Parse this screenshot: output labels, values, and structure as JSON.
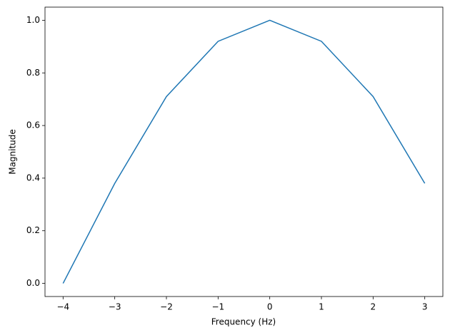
{
  "chart_data": {
    "type": "line",
    "x_label": "Frequency (Hz)",
    "y_label": "Magnitude",
    "x": [
      -4,
      -3,
      -2,
      -1,
      0,
      1,
      2,
      3
    ],
    "series": [
      {
        "color": "#1f77b4",
        "values": [
          0.0,
          0.38,
          0.71,
          0.92,
          1.0,
          0.92,
          0.71,
          0.38
        ]
      }
    ],
    "xlim": [
      -4.35,
      3.35
    ],
    "xticks": [
      {
        "value": -4,
        "label": "−4"
      },
      {
        "value": -3,
        "label": "−3"
      },
      {
        "value": -2,
        "label": "−2"
      },
      {
        "value": -1,
        "label": "−1"
      },
      0,
      1,
      2,
      3
    ],
    "ylim": [
      -0.05,
      1.05
    ],
    "yticks": [
      {
        "value": 0,
        "label": "0.0"
      },
      0.2,
      0.4,
      0.6,
      0.8,
      {
        "value": 1,
        "label": "1.0"
      }
    ],
    "grid": false
  }
}
